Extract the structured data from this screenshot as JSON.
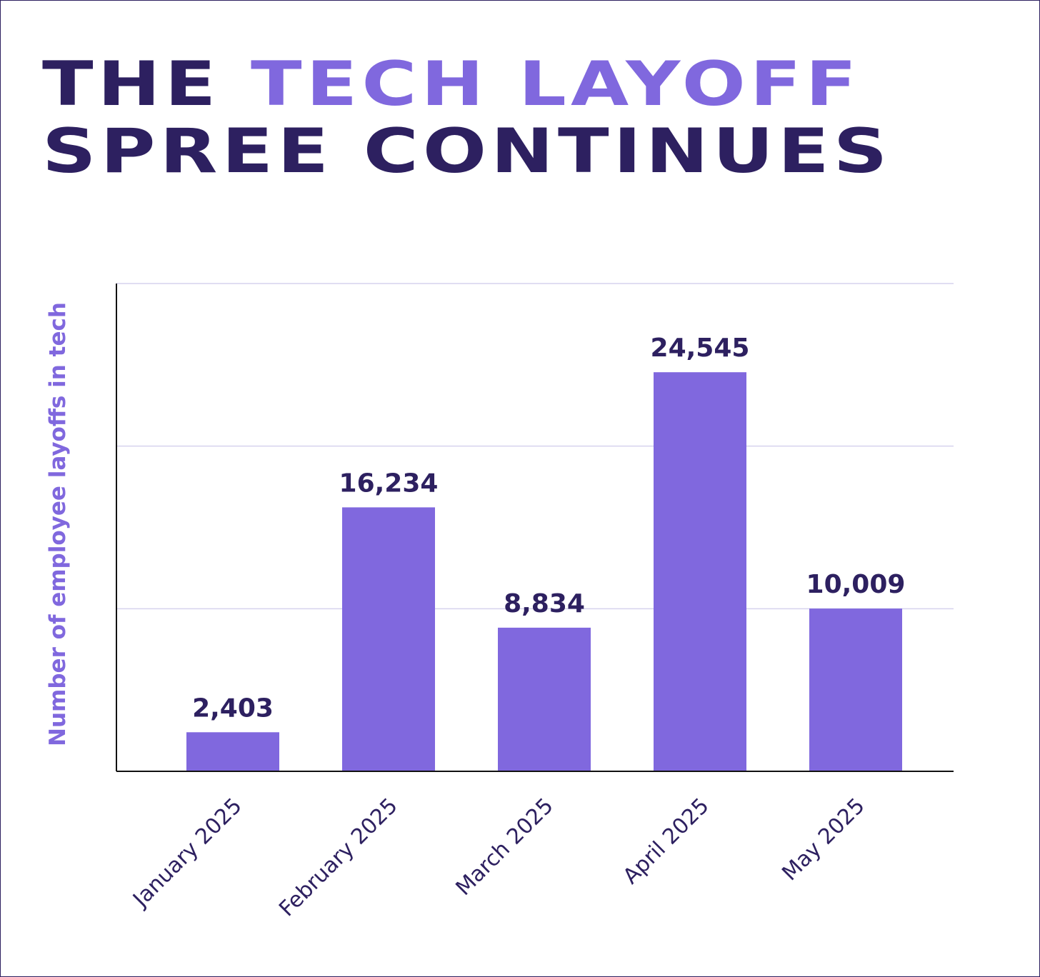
{
  "title": {
    "line1_part1": "THE ",
    "line1_part2": "TECH LAYOFF",
    "line2": "SPREE CONTINUES"
  },
  "colors": {
    "bar": "#8068de",
    "dark": "#2d2060",
    "accent": "#8068de",
    "grid": "#d6d2ee"
  },
  "chart_data": {
    "type": "bar",
    "categories": [
      "January 2025",
      "February 2025",
      "March 2025",
      "April 2025",
      "May 2025"
    ],
    "values": [
      2403,
      16234,
      8834,
      24545,
      10009
    ],
    "value_labels": [
      "2,403",
      "16,234",
      "8,834",
      "24,545",
      "10,009"
    ],
    "ylabel": "Number of employee layoffs in tech",
    "xlabel": "",
    "ylim": [
      0,
      30000
    ],
    "gridlines": [
      10000,
      20000,
      30000
    ],
    "grid": true,
    "legend": "none"
  }
}
